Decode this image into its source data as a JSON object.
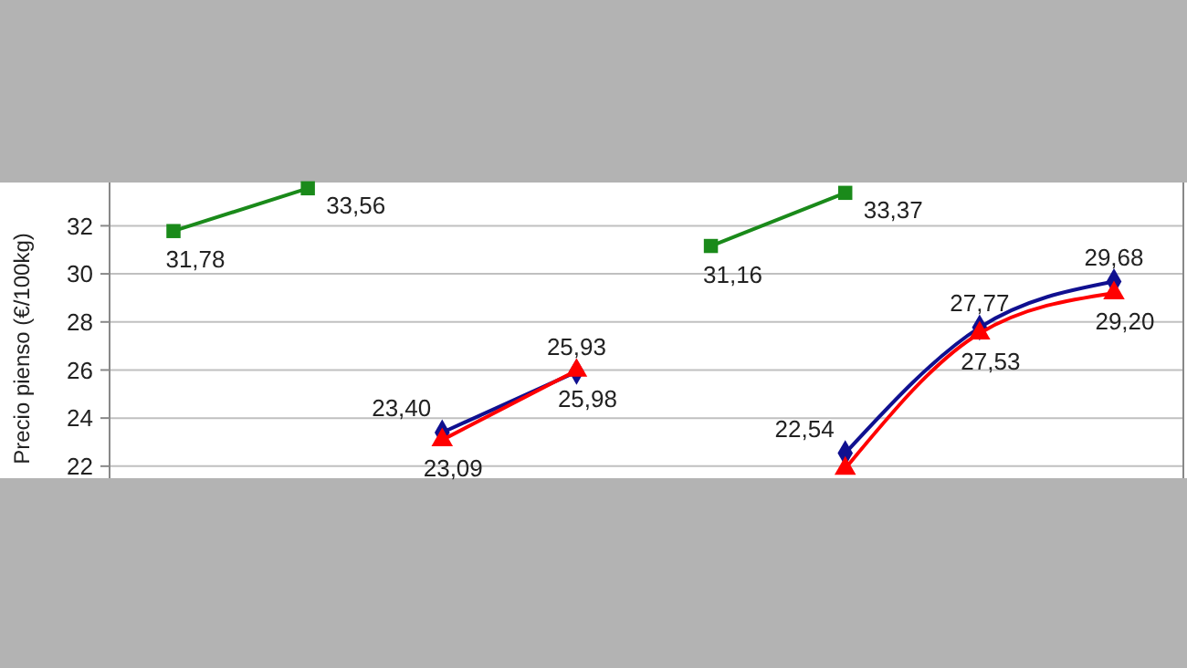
{
  "chart_data": {
    "type": "line",
    "ylabel": "Precio pienso (€/100kg)",
    "categories": [
      null,
      null,
      null,
      null,
      null,
      null,
      null,
      null
    ],
    "ylim": [
      21.5,
      33.8
    ],
    "yticks": [
      22,
      24,
      26,
      28,
      30,
      32
    ],
    "grid": "y",
    "series": [
      {
        "color": "#1a8a1a",
        "marker": "square",
        "values": [
          31.78,
          33.56,
          null,
          null,
          31.16,
          33.37,
          null,
          null
        ],
        "value_labels": [
          "31,78",
          "33,56",
          null,
          null,
          "31,16",
          "33,37",
          null,
          null
        ]
      },
      {
        "color": "#101090",
        "marker": "diamond",
        "values": [
          null,
          null,
          23.4,
          25.93,
          null,
          22.54,
          27.77,
          29.68
        ],
        "value_labels": [
          null,
          null,
          "23,40",
          "25,93",
          null,
          "22,54",
          "27,77",
          "29,68"
        ]
      },
      {
        "color": "#ff0000",
        "marker": "triangle",
        "values": [
          null,
          null,
          23.09,
          25.98,
          null,
          21.9,
          27.53,
          29.2
        ],
        "value_labels": [
          null,
          null,
          "23,09",
          "25,98",
          null,
          null,
          "27,53",
          "29,20"
        ]
      }
    ]
  }
}
